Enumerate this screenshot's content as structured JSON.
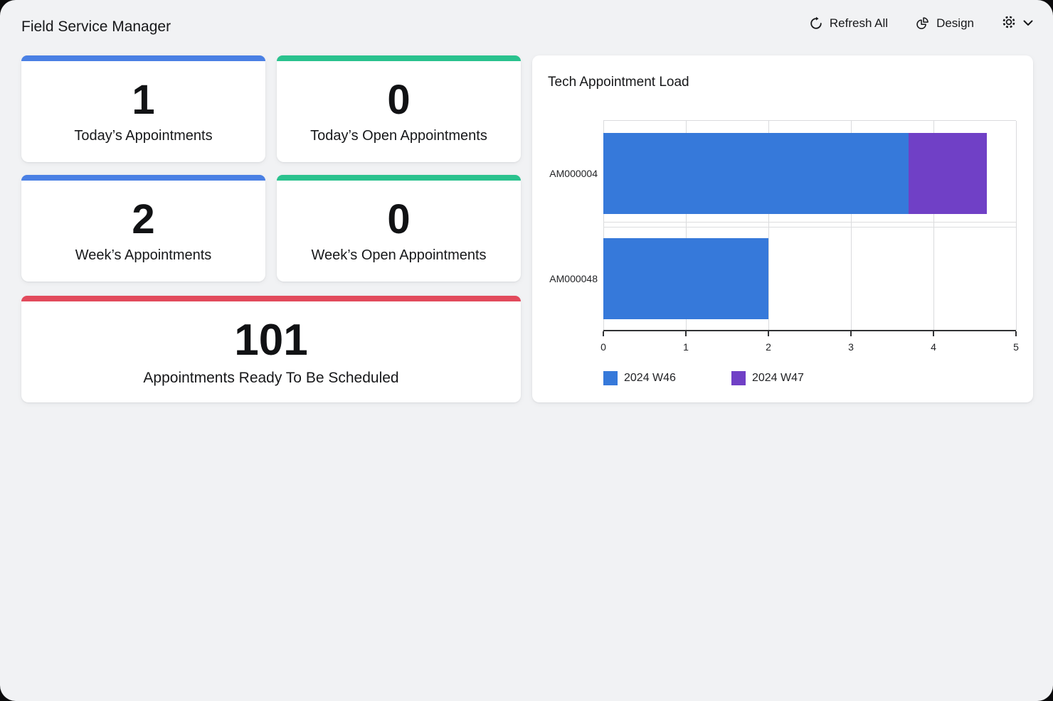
{
  "header": {
    "title": "Field Service Manager",
    "refresh_label": "Refresh All",
    "design_label": "Design"
  },
  "kpis": [
    {
      "value": "1",
      "label": "Today’s Appointments",
      "accent": "#4a80e4"
    },
    {
      "value": "0",
      "label": "Today’s Open Appointments",
      "accent": "#2ac28e"
    },
    {
      "value": "2",
      "label": "Week’s Appointments",
      "accent": "#4a80e4"
    },
    {
      "value": "0",
      "label": "Week’s Open Appointments",
      "accent": "#2ac28e"
    },
    {
      "value": "101",
      "label": "Appointments Ready To Be Scheduled",
      "accent": "#e24a5c"
    }
  ],
  "chart_data": {
    "type": "bar",
    "orientation": "horizontal",
    "stacked": true,
    "title": "Tech Appointment Load",
    "categories": [
      "AM000004",
      "AM000048"
    ],
    "series": [
      {
        "name": "2024 W46",
        "color": "#3679da",
        "values": [
          3.7,
          2
        ]
      },
      {
        "name": "2024 W47",
        "color": "#7040c6",
        "values": [
          0.95,
          0
        ]
      }
    ],
    "xlim": [
      0,
      5
    ],
    "x_ticks": [
      0,
      1,
      2,
      3,
      4,
      5
    ],
    "grid": true,
    "legend_position": "bottom"
  }
}
